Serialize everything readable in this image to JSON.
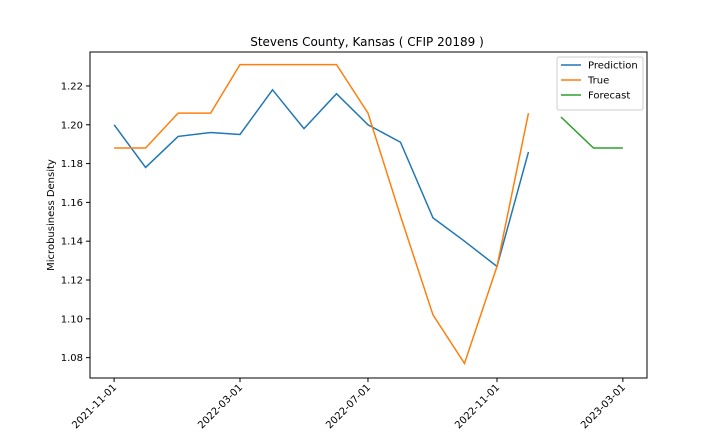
{
  "chart_data": {
    "type": "line",
    "title": "Stevens County, Kansas ( CFIP 20189 )",
    "xlabel": "",
    "ylabel": "Microbusiness Density",
    "xlim": [
      "2021-10-09",
      "2023-03-24"
    ],
    "ylim": [
      1.0695,
      1.2375
    ],
    "x_ticks": [
      "2021-11-01",
      "2022-03-01",
      "2022-07-01",
      "2022-11-01",
      "2023-03-01"
    ],
    "y_ticks": [
      1.08,
      1.1,
      1.12,
      1.14,
      1.16,
      1.18,
      1.2,
      1.22
    ],
    "y_tick_labels": [
      "1.08",
      "1.10",
      "1.12",
      "1.14",
      "1.16",
      "1.18",
      "1.20",
      "1.22"
    ],
    "legend_position": "top-right",
    "grid": false,
    "series": [
      {
        "name": "Prediction",
        "color": "#1f77b4",
        "x": [
          "2021-11-01",
          "2021-12-01",
          "2022-01-01",
          "2022-02-01",
          "2022-03-01",
          "2022-04-01",
          "2022-05-01",
          "2022-06-01",
          "2022-07-01",
          "2022-08-01",
          "2022-09-01",
          "2022-10-01",
          "2022-11-01",
          "2022-12-01"
        ],
        "values": [
          1.2,
          1.178,
          1.194,
          1.196,
          1.195,
          1.218,
          1.198,
          1.216,
          1.2,
          1.191,
          1.152,
          1.14,
          1.127,
          1.186
        ]
      },
      {
        "name": "True",
        "color": "#ff7f0e",
        "x": [
          "2021-11-01",
          "2021-12-01",
          "2022-01-01",
          "2022-02-01",
          "2022-03-01",
          "2022-04-01",
          "2022-05-01",
          "2022-06-01",
          "2022-07-01",
          "2022-08-01",
          "2022-09-01",
          "2022-10-01",
          "2022-11-01",
          "2022-12-01"
        ],
        "values": [
          1.188,
          1.188,
          1.206,
          1.206,
          1.231,
          1.231,
          1.231,
          1.231,
          1.206,
          1.153,
          1.102,
          1.077,
          1.127,
          1.206
        ]
      },
      {
        "name": "Forecast",
        "color": "#2ca02c",
        "x": [
          "2023-01-01",
          "2023-02-01",
          "2023-03-01"
        ],
        "values": [
          1.204,
          1.188,
          1.188
        ]
      }
    ]
  }
}
